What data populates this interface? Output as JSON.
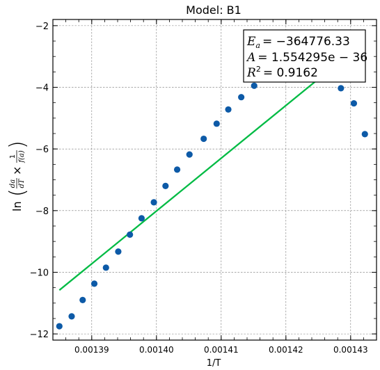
{
  "chart_data": {
    "type": "scatter",
    "title": "Model: B1",
    "xlabel": "1/T",
    "ylabel": {
      "prefix": "ln",
      "da": "da",
      "dT": "dT",
      "times": "×",
      "one": "1",
      "fa": "f(a)"
    },
    "xlim": [
      0.001384,
      0.001434
    ],
    "ylim": [
      -12.2,
      -1.8
    ],
    "xticks": [
      0.00139,
      0.0014,
      0.00141,
      0.00142,
      0.00143
    ],
    "xtick_labels": [
      "0.00139",
      "0.00140",
      "0.00141",
      "0.00142",
      "0.00143"
    ],
    "yticks": [
      -12,
      -10,
      -8,
      -6,
      -4,
      -2
    ],
    "ytick_labels": [
      "−12",
      "−10",
      "−8",
      "−6",
      "−4",
      "−2"
    ],
    "grid": true,
    "series": [
      {
        "kind": "points",
        "color": "#0d5aa7",
        "points": [
          [
            0.001385,
            -11.75
          ],
          [
            0.0013869,
            -11.43
          ],
          [
            0.0013886,
            -10.9
          ],
          [
            0.0013904,
            -10.37
          ],
          [
            0.0013922,
            -9.85
          ],
          [
            0.0013941,
            -9.33
          ],
          [
            0.0013959,
            -8.78
          ],
          [
            0.0013977,
            -8.25
          ],
          [
            0.0013996,
            -7.73
          ],
          [
            0.0014014,
            -7.2
          ],
          [
            0.0014032,
            -6.67
          ],
          [
            0.0014051,
            -6.18
          ],
          [
            0.0014073,
            -5.67
          ],
          [
            0.0014093,
            -5.18
          ],
          [
            0.0014111,
            -4.72
          ],
          [
            0.0014131,
            -4.32
          ],
          [
            0.0014151,
            -3.95
          ],
          [
            0.0014285,
            -4.03
          ],
          [
            0.0014305,
            -4.52
          ],
          [
            0.0014322,
            -5.52
          ]
        ]
      },
      {
        "kind": "fit_line",
        "color": "#00bb44",
        "points": [
          [
            0.001385,
            -10.58
          ],
          [
            0.0014252,
            -3.7
          ]
        ]
      }
    ],
    "annotation": {
      "lines": [
        {
          "lhs": "E",
          "sub": "a",
          "rhs": "= −364776.33"
        },
        {
          "lhs": "A",
          "sub": "",
          "rhs": "= 1.554295e − 36"
        },
        {
          "lhs": "R",
          "sup": "2",
          "rhs": "= 0.9162"
        }
      ]
    }
  }
}
